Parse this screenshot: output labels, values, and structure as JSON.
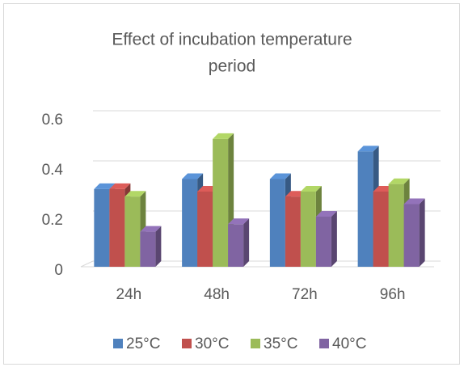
{
  "chart_data": {
    "type": "bar",
    "title": [
      "Effect of incubation temperature",
      "period"
    ],
    "categories": [
      "24h",
      "48h",
      "72h",
      "96h"
    ],
    "series": [
      {
        "name": "25°C",
        "color": "#4f81bd",
        "values": [
          0.31,
          0.35,
          0.35,
          0.46
        ]
      },
      {
        "name": "30°C",
        "color": "#c0504d",
        "values": [
          0.31,
          0.3,
          0.28,
          0.3
        ]
      },
      {
        "name": "35°C",
        "color": "#9bbb59",
        "values": [
          0.28,
          0.51,
          0.3,
          0.33
        ]
      },
      {
        "name": "40°C",
        "color": "#8064a2",
        "values": [
          0.14,
          0.17,
          0.2,
          0.25
        ]
      }
    ],
    "ylim": [
      0,
      0.6
    ],
    "yticks": [
      0,
      0.2,
      0.4,
      0.6
    ],
    "grid": true,
    "legend": "bottom"
  }
}
